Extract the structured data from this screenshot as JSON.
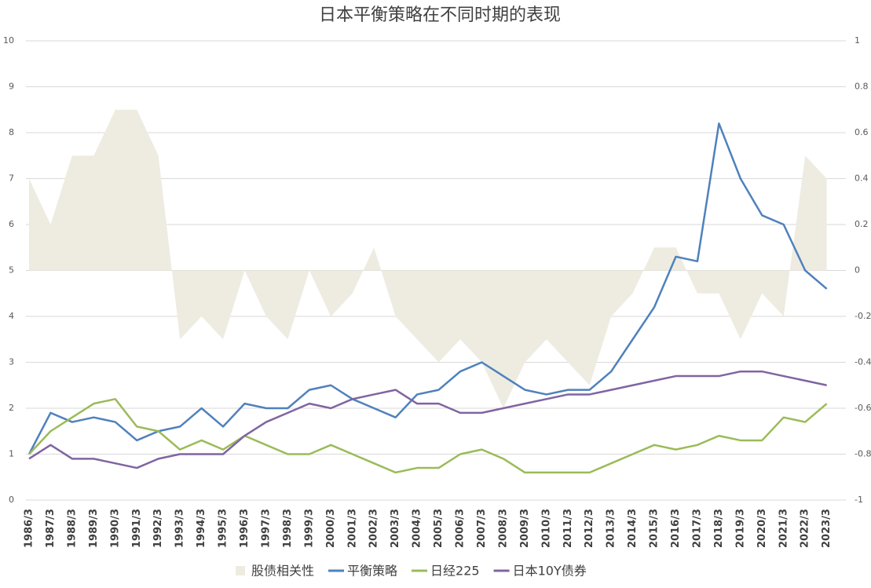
{
  "chart_data": {
    "type": "line",
    "title": "日本平衡策略在不同时期的表现",
    "categories": [
      "1986/3",
      "1987/3",
      "1988/3",
      "1989/3",
      "1990/3",
      "1991/3",
      "1992/3",
      "1993/3",
      "1994/3",
      "1995/3",
      "1996/3",
      "1997/3",
      "1998/3",
      "1999/3",
      "2000/3",
      "2001/3",
      "2002/3",
      "2003/3",
      "2004/3",
      "2005/3",
      "2006/3",
      "2007/3",
      "2008/3",
      "2009/3",
      "2010/3",
      "2011/3",
      "2012/3",
      "2013/3",
      "2014/3",
      "2015/3",
      "2016/3",
      "2017/3",
      "2018/3",
      "2019/3",
      "2020/3",
      "2021/3",
      "2022/3",
      "2023/3"
    ],
    "series": [
      {
        "name": "股债相关性",
        "color": "#eeece1",
        "axis": "y2",
        "style": "area",
        "values": [
          0.4,
          0.2,
          0.5,
          0.5,
          0.7,
          0.7,
          0.5,
          -0.3,
          -0.2,
          -0.3,
          0.0,
          -0.2,
          -0.3,
          0.0,
          -0.2,
          -0.1,
          0.1,
          -0.2,
          -0.3,
          -0.4,
          -0.3,
          -0.4,
          -0.6,
          -0.4,
          -0.3,
          -0.4,
          -0.5,
          -0.2,
          -0.1,
          0.1,
          0.1,
          -0.1,
          -0.1,
          -0.3,
          -0.1,
          -0.2,
          0.5,
          0.4
        ]
      },
      {
        "name": "平衡策略",
        "color": "#4f81bd",
        "values": [
          1.0,
          1.9,
          1.7,
          1.8,
          1.7,
          1.3,
          1.5,
          1.6,
          2.0,
          1.6,
          2.1,
          2.0,
          2.0,
          2.4,
          2.5,
          2.2,
          2.0,
          1.8,
          2.3,
          2.4,
          2.8,
          3.0,
          2.7,
          2.4,
          2.3,
          2.4,
          2.4,
          2.8,
          3.5,
          4.2,
          5.3,
          5.2,
          8.2,
          7.0,
          6.2,
          6.0,
          5.0,
          4.6
        ]
      },
      {
        "name": "日经225",
        "color": "#9bbb59",
        "values": [
          1.0,
          1.5,
          1.8,
          2.1,
          2.2,
          1.6,
          1.5,
          1.1,
          1.3,
          1.1,
          1.4,
          1.2,
          1.0,
          1.0,
          1.2,
          1.0,
          0.8,
          0.6,
          0.7,
          0.7,
          1.0,
          1.1,
          0.9,
          0.6,
          0.6,
          0.6,
          0.6,
          0.8,
          1.0,
          1.2,
          1.1,
          1.2,
          1.4,
          1.3,
          1.3,
          1.8,
          1.7,
          2.1
        ]
      },
      {
        "name": "日本10Y债券",
        "color": "#8064a2",
        "values": [
          0.9,
          1.2,
          0.9,
          0.9,
          0.8,
          0.7,
          0.9,
          1.0,
          1.0,
          1.0,
          1.4,
          1.7,
          1.9,
          2.1,
          2.0,
          2.2,
          2.3,
          2.4,
          2.1,
          2.1,
          1.9,
          1.9,
          2.0,
          2.1,
          2.2,
          2.3,
          2.3,
          2.4,
          2.5,
          2.6,
          2.7,
          2.7,
          2.7,
          2.8,
          2.8,
          2.7,
          2.6,
          2.5
        ]
      }
    ],
    "ylim": [
      0,
      10
    ],
    "yticks": [
      0,
      1,
      2,
      3,
      4,
      5,
      6,
      7,
      8,
      9,
      10
    ],
    "y2lim": [
      -1,
      1
    ],
    "y2ticks": [
      -1,
      -0.8,
      -0.6,
      -0.4,
      -0.2,
      0,
      0.2,
      0.4,
      0.6,
      0.8,
      1
    ],
    "grid": true,
    "legend": "bottom"
  }
}
